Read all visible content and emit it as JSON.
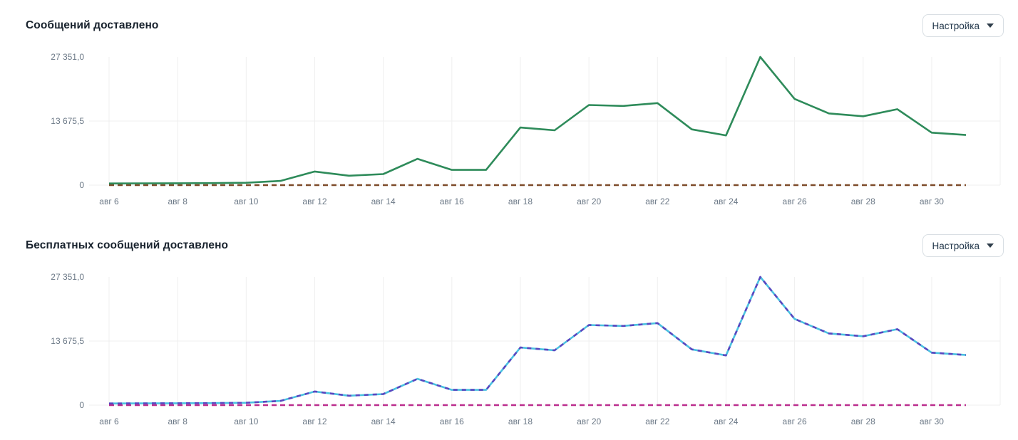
{
  "charts": [
    {
      "title": "Сообщений доставлено",
      "settings_label": "Настройка"
    },
    {
      "title": "Бесплатных сообщений доставлено",
      "settings_label": "Настройка"
    }
  ],
  "chart_data": [
    {
      "type": "line",
      "title": "Сообщений доставлено",
      "x": [
        "авг 6",
        "авг 7",
        "авг 8",
        "авг 9",
        "авг 10",
        "авг 11",
        "авг 12",
        "авг 13",
        "авг 14",
        "авг 15",
        "авг 16",
        "авг 17",
        "авг 18",
        "авг 19",
        "авг 20",
        "авг 21",
        "авг 22",
        "авг 23",
        "авг 24",
        "авг 25",
        "авг 26",
        "авг 27",
        "авг 28",
        "авг 29",
        "авг 30",
        "авг 31"
      ],
      "x_tick_labels": [
        "авг 6",
        "авг 8",
        "авг 10",
        "авг 12",
        "авг 14",
        "авг 16",
        "авг 18",
        "авг 20",
        "авг 22",
        "авг 24",
        "авг 26",
        "авг 28",
        "авг 30"
      ],
      "y_tick_labels": [
        "27 351,0",
        "13 675,5",
        "0"
      ],
      "ylim": [
        0,
        27351
      ],
      "grid": true,
      "legend": "none",
      "series": [
        {
          "name": "zero-baseline",
          "color": "#7d4b2a",
          "style": "dashed",
          "dash": "7 5",
          "values": [
            0,
            0,
            0,
            0,
            0,
            0,
            0,
            0,
            0,
            0,
            0,
            0,
            0,
            0,
            0,
            0,
            0,
            0,
            0,
            0,
            0,
            0,
            0,
            0,
            0,
            0
          ]
        },
        {
          "name": "messages-delivered",
          "color": "#2e8b5a",
          "style": "solid",
          "values": [
            350,
            380,
            400,
            420,
            500,
            900,
            2900,
            2000,
            2350,
            5600,
            3250,
            3250,
            12300,
            11700,
            17100,
            16900,
            17500,
            11900,
            10600,
            27351,
            18400,
            15300,
            14700,
            16200,
            11200,
            10700
          ]
        }
      ]
    },
    {
      "type": "line",
      "title": "Бесплатных сообщений доставлено",
      "x": [
        "авг 6",
        "авг 7",
        "авг 8",
        "авг 9",
        "авг 10",
        "авг 11",
        "авг 12",
        "авг 13",
        "авг 14",
        "авг 15",
        "авг 16",
        "авг 17",
        "авг 18",
        "авг 19",
        "авг 20",
        "авг 21",
        "авг 22",
        "авг 23",
        "авг 24",
        "авг 25",
        "авг 26",
        "авг 27",
        "авг 28",
        "авг 29",
        "авг 30",
        "авг 31"
      ],
      "x_tick_labels": [
        "авг 6",
        "авг 8",
        "авг 10",
        "авг 12",
        "авг 14",
        "авг 16",
        "авг 18",
        "авг 20",
        "авг 22",
        "авг 24",
        "авг 26",
        "авг 28",
        "авг 30"
      ],
      "y_tick_labels": [
        "27 351,0",
        "13 675,5",
        "0"
      ],
      "ylim": [
        0,
        27351
      ],
      "grid": true,
      "legend": "none",
      "series": [
        {
          "name": "zero-baseline",
          "color": "#bb2d8e",
          "style": "dashed",
          "dash": "7 5",
          "values": [
            0,
            0,
            0,
            0,
            0,
            0,
            0,
            0,
            0,
            0,
            0,
            0,
            0,
            0,
            0,
            0,
            0,
            0,
            0,
            0,
            0,
            0,
            0,
            0,
            0,
            0
          ]
        },
        {
          "name": "free-messages-delivered-base",
          "color": "#4ac2e0",
          "style": "solid",
          "values": [
            350,
            380,
            400,
            420,
            500,
            900,
            2900,
            2000,
            2350,
            5600,
            3250,
            3250,
            12300,
            11700,
            17100,
            16900,
            17500,
            11900,
            10600,
            27351,
            18400,
            15300,
            14700,
            16200,
            11200,
            10700
          ]
        },
        {
          "name": "free-messages-delivered-overlay",
          "color": "#5a46bf",
          "style": "dashed",
          "dash": "6 6",
          "values": [
            350,
            380,
            400,
            420,
            500,
            900,
            2900,
            2000,
            2350,
            5600,
            3250,
            3250,
            12300,
            11700,
            17100,
            16900,
            17500,
            11900,
            10600,
            27351,
            18400,
            15300,
            14700,
            16200,
            11200,
            10700
          ]
        }
      ]
    }
  ],
  "colors": {
    "grid": "#efefef",
    "axis_text": "#6b7886",
    "title_text": "#18222d",
    "chart1_line": "#2e8b5a",
    "chart1_zero_dash": "#7d4b2a",
    "chart2_line_base": "#4ac2e0",
    "chart2_line_overlay": "#5a46bf",
    "chart2_zero_dash": "#bb2d8e"
  }
}
